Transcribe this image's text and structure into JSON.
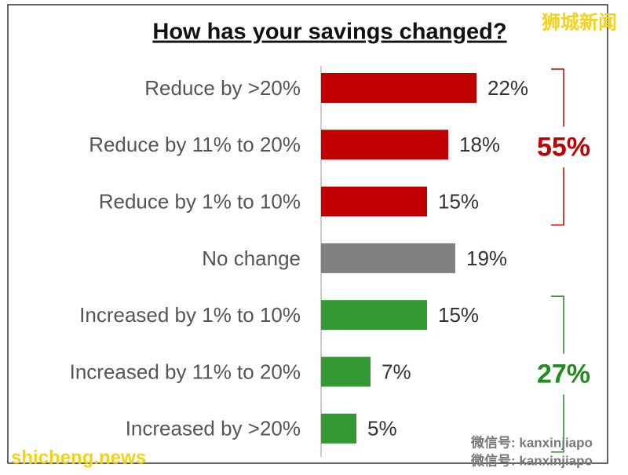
{
  "chart_data": {
    "type": "bar",
    "orientation": "horizontal",
    "title": "How has your savings changed?",
    "categories": [
      "Reduce by >20%",
      "Reduce by 11% to 20%",
      "Reduce by 1% to 10%",
      "No change",
      "Increased by 1% to 10%",
      "Increased by 11% to 20%",
      "Increased by >20%"
    ],
    "values": [
      22,
      18,
      15,
      19,
      15,
      7,
      5
    ],
    "value_labels": [
      "22%",
      "18%",
      "15%",
      "19%",
      "15%",
      "7%",
      "5%"
    ],
    "colors": [
      "#c00000",
      "#c00000",
      "#c00000",
      "#808080",
      "#339933",
      "#339933",
      "#339933"
    ],
    "annotations": [
      {
        "text": "55%",
        "color": "#c00000"
      },
      {
        "text": "27%",
        "color": "#228b22"
      }
    ],
    "watermarks": [
      "狮城新闻",
      "shicheng.news",
      "微信号: kanxinjiapo",
      "微信号: kanxinjiapo"
    ]
  }
}
